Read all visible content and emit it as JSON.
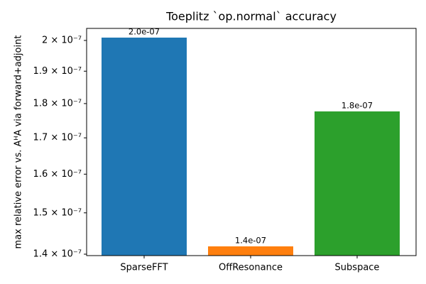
{
  "chart_data": {
    "type": "bar",
    "title": "Toeplitz `op.normal` accuracy",
    "ylabel": "max relative error  vs.  AᴴA via forward+adjoint",
    "categories": [
      "SparseFFT",
      "OffResonance",
      "Subspace"
    ],
    "values": [
      2.0095e-07,
      1.4184e-07,
      1.7767e-07
    ],
    "value_labels": [
      "2.0e-07",
      "1.4e-07",
      "1.8e-07"
    ],
    "colors": [
      "#1f77b4",
      "#ff7f0e",
      "#2ca02c"
    ],
    "yscale": "log",
    "ylim": [
      1.3967e-07,
      2.0406e-07
    ],
    "yticks": [
      {
        "value": 1.4e-07,
        "label": "1.4 × 10⁻⁷"
      },
      {
        "value": 1.5e-07,
        "label": "1.5 × 10⁻⁷"
      },
      {
        "value": 1.6e-07,
        "label": "1.6 × 10⁻⁷"
      },
      {
        "value": 1.7e-07,
        "label": "1.7 × 10⁻⁷"
      },
      {
        "value": 1.8e-07,
        "label": "1.8 × 10⁻⁷"
      },
      {
        "value": 1.9e-07,
        "label": "1.9 × 10⁻⁷"
      },
      {
        "value": 2e-07,
        "label": "2 × 10⁻⁷"
      }
    ]
  }
}
